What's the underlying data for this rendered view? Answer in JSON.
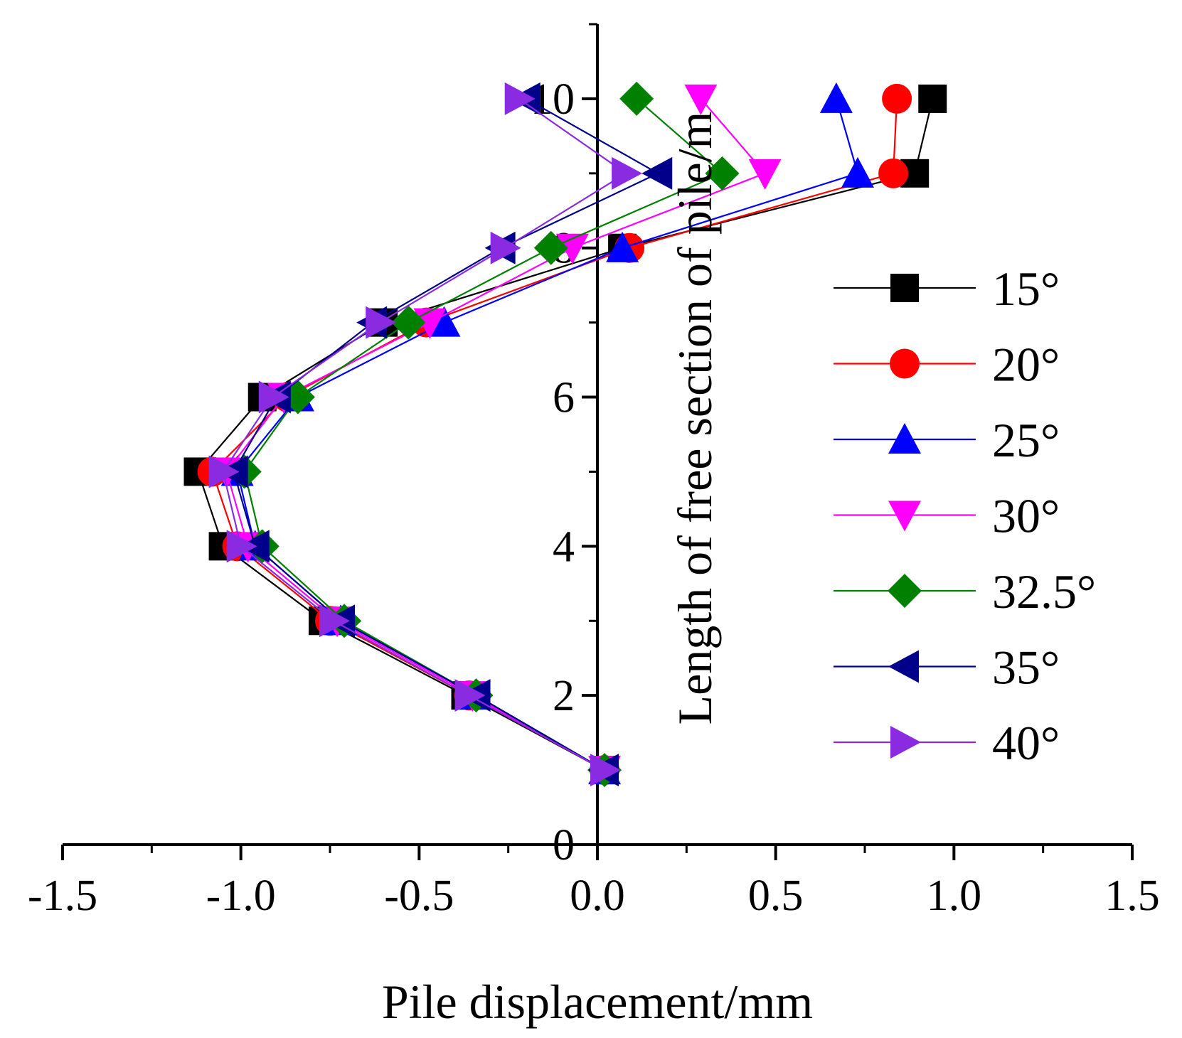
{
  "chart_data": {
    "type": "line",
    "title": "",
    "xlabel": "Pile displacement/mm",
    "ylabel": "Length of free section of pile/m",
    "xlim": [
      -1.5,
      1.5
    ],
    "ylim": [
      0,
      11
    ],
    "xticks": [
      -1.5,
      -1.0,
      -0.5,
      0.0,
      0.5,
      1.0,
      1.5
    ],
    "xtick_labels": [
      "-1.5",
      "-1.0",
      "-0.5",
      "0.0",
      "0.5",
      "1.0",
      "1.5"
    ],
    "yticks": [
      0,
      2,
      4,
      6,
      8,
      10
    ],
    "ytick_labels": [
      "0",
      "2",
      "4",
      "6",
      "8",
      "10"
    ],
    "grid": false,
    "legend_position": "right",
    "series": [
      {
        "name": "15°",
        "color": "#000000",
        "marker": "square",
        "points": [
          [
            0.02,
            1
          ],
          [
            -0.37,
            2
          ],
          [
            -0.77,
            3
          ],
          [
            -1.05,
            4
          ],
          [
            -1.12,
            5
          ],
          [
            -0.94,
            6
          ],
          [
            -0.6,
            7
          ],
          [
            0.07,
            8
          ],
          [
            0.89,
            9
          ],
          [
            0.94,
            10
          ]
        ]
      },
      {
        "name": "20°",
        "color": "#ff0000",
        "marker": "circle",
        "points": [
          [
            0.02,
            1
          ],
          [
            -0.36,
            2
          ],
          [
            -0.75,
            3
          ],
          [
            -1.01,
            4
          ],
          [
            -1.08,
            5
          ],
          [
            -0.87,
            6
          ],
          [
            -0.48,
            7
          ],
          [
            0.09,
            8
          ],
          [
            0.83,
            9
          ],
          [
            0.84,
            10
          ]
        ]
      },
      {
        "name": "25°",
        "color": "#0000ff",
        "marker": "triangle-up",
        "points": [
          [
            0.02,
            1
          ],
          [
            -0.34,
            2
          ],
          [
            -0.72,
            3
          ],
          [
            -0.96,
            4
          ],
          [
            -1.01,
            5
          ],
          [
            -0.84,
            6
          ],
          [
            -0.43,
            7
          ],
          [
            0.07,
            8
          ],
          [
            0.73,
            9
          ],
          [
            0.67,
            10
          ]
        ]
      },
      {
        "name": "30°",
        "color": "#ff00ff",
        "marker": "triangle-down",
        "points": [
          [
            0.02,
            1
          ],
          [
            -0.35,
            2
          ],
          [
            -0.73,
            3
          ],
          [
            -0.98,
            4
          ],
          [
            -1.04,
            5
          ],
          [
            -0.88,
            6
          ],
          [
            -0.47,
            7
          ],
          [
            -0.07,
            8
          ],
          [
            0.47,
            9
          ],
          [
            0.29,
            10
          ]
        ]
      },
      {
        "name": "32.5°",
        "color": "#008000",
        "marker": "diamond",
        "points": [
          [
            0.02,
            1
          ],
          [
            -0.34,
            2
          ],
          [
            -0.71,
            3
          ],
          [
            -0.94,
            4
          ],
          [
            -0.99,
            5
          ],
          [
            -0.84,
            6
          ],
          [
            -0.53,
            7
          ],
          [
            -0.13,
            8
          ],
          [
            0.35,
            9
          ],
          [
            0.11,
            10
          ]
        ]
      },
      {
        "name": "35°",
        "color": "#00008b",
        "marker": "triangle-left",
        "points": [
          [
            0.02,
            1
          ],
          [
            -0.34,
            2
          ],
          [
            -0.72,
            3
          ],
          [
            -0.96,
            4
          ],
          [
            -1.02,
            5
          ],
          [
            -0.9,
            6
          ],
          [
            -0.63,
            7
          ],
          [
            -0.27,
            8
          ],
          [
            0.17,
            9
          ],
          [
            -0.2,
            10
          ]
        ]
      },
      {
        "name": "40°",
        "color": "#8a2be2",
        "marker": "triangle-right",
        "points": [
          [
            0.02,
            1
          ],
          [
            -0.36,
            2
          ],
          [
            -0.74,
            3
          ],
          [
            -1.0,
            4
          ],
          [
            -1.05,
            5
          ],
          [
            -0.91,
            6
          ],
          [
            -0.61,
            7
          ],
          [
            -0.26,
            8
          ],
          [
            0.08,
            9
          ],
          [
            -0.22,
            10
          ]
        ]
      }
    ]
  }
}
